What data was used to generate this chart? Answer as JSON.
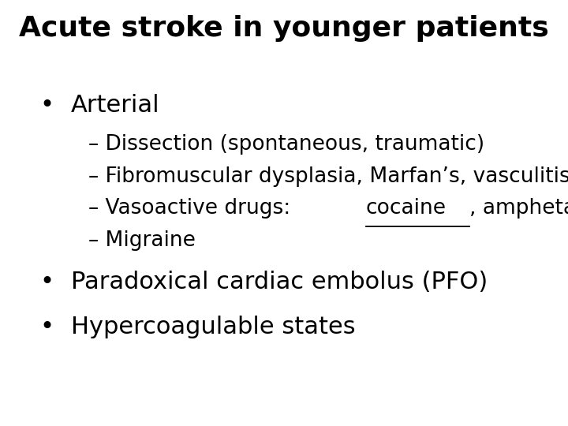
{
  "title": "Acute stroke in younger patients",
  "title_fontsize": 26,
  "title_fontweight": "bold",
  "background_color": "#ffffff",
  "text_color": "#000000",
  "bullet1": "Arterial",
  "bullet1_size": 22,
  "sub_item1": "– Dissection (spontaneous, traumatic)",
  "sub_item2": "– Fibromuscular dysplasia, Marfan’s, vasculitis",
  "vaso_prefix": "– Vasoactive drugs:  ",
  "vaso_cocaine": "cocaine",
  "vaso_suffix": ", amphetamines",
  "sub_item4": "– Migraine",
  "sub_size": 19,
  "bullet2": "Paradoxical cardiac embolus (PFO)",
  "bullet2_size": 22,
  "bullet3": "Hypercoagulable states",
  "bullet3_size": 22,
  "bullet_char": "•",
  "font_family": "DejaVu Sans"
}
